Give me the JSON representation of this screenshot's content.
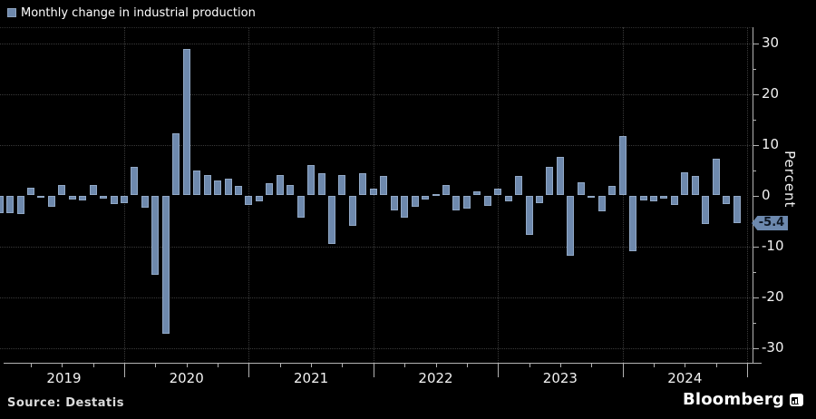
{
  "legend": {
    "label": "Monthly change in industrial production"
  },
  "y_axis": {
    "title": "Percent",
    "tick_labels": [
      "30",
      "20",
      "10",
      "0",
      "-10",
      "-20",
      "-30"
    ],
    "last_value_badge": "-5.4"
  },
  "x_axis": {
    "year_labels": [
      "2019",
      "2020",
      "2021",
      "2022",
      "2023",
      "2024"
    ]
  },
  "footer": {
    "source": "Source:  Destatis",
    "brand": "Bloomberg"
  },
  "colors": {
    "background": "#000000",
    "bar": "#6e89ad",
    "bar_edge": "#a8bcd6",
    "badge_background": "#6d89ae",
    "axis": "#b3b3b3",
    "gridline": "#3a3a3a",
    "text": "#f2f2f2"
  },
  "chart_data": {
    "type": "bar",
    "title": "Monthly change in industrial production",
    "xlabel": "",
    "ylabel": "Percent",
    "ylim": [
      -33,
      33
    ],
    "y_major_ticks": [
      30,
      20,
      10,
      0,
      -10,
      -20,
      -30
    ],
    "y_minor_tick_step": 5,
    "grid_horizontal_at": [
      30,
      20,
      10,
      -10,
      -20,
      -30
    ],
    "grid_vertical": "dotted line at each year boundary",
    "legend_position": "top-left",
    "x_unit": "month",
    "categories_years": [
      "2019",
      "2020",
      "2021",
      "2022",
      "2023",
      "2024"
    ],
    "series": [
      {
        "name": "Monthly change in industrial production",
        "values_by_year": {
          "2019": [
            -3.5,
            -3.5,
            -3.7,
            1.5,
            -0.3,
            -2.3,
            2.0,
            -0.8,
            -1.0,
            2.0,
            -0.6,
            -1.7
          ],
          "2020": [
            -1.5,
            5.7,
            -2.4,
            -15.7,
            -27.3,
            12.3,
            28.8,
            4.9,
            4.1,
            3.0,
            3.3,
            1.9
          ],
          "2021": [
            -1.8,
            -1.1,
            2.4,
            4.1,
            2.1,
            -4.4,
            6.0,
            4.3,
            -9.6,
            4.0,
            -6.0,
            4.3
          ],
          "2022": [
            1.4,
            3.8,
            -2.9,
            -4.4,
            -2.2,
            -0.8,
            0.2,
            2.1,
            -3.0,
            -2.5,
            0.8,
            -2.1
          ],
          "2023": [
            1.3,
            -1.1,
            3.8,
            -7.8,
            -1.6,
            5.7,
            7.6,
            -11.8,
            2.6,
            -0.5,
            -3.2,
            1.8
          ],
          "2024": [
            11.7,
            -10.9,
            -0.9,
            -1.1,
            -0.6,
            -1.8,
            4.6,
            3.8,
            -5.6,
            7.2,
            -1.7,
            -5.4
          ]
        }
      }
    ],
    "last_value": -5.4
  }
}
